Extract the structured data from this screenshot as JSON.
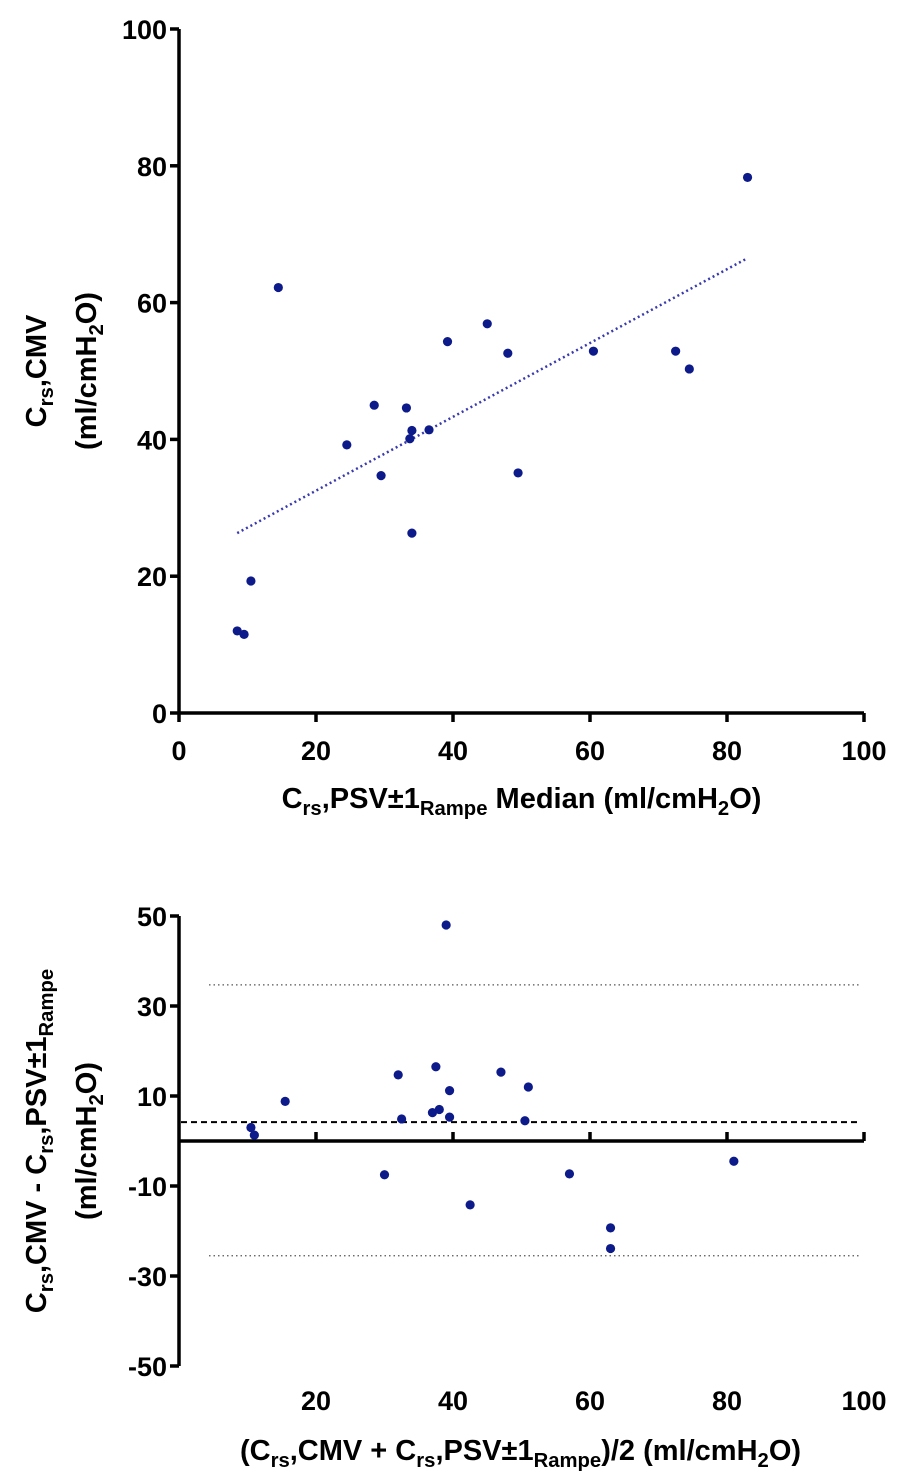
{
  "chart_data": [
    {
      "type": "scatter",
      "xlabel": "Crs,PSV±1Rampe Median (ml/cmH2O)",
      "xlabel_parts": [
        "C",
        "rs",
        ",PSV±1",
        "Rampe",
        " Median (ml/cmH",
        "2",
        "O)"
      ],
      "ylabel_line1_parts": [
        "C",
        "rs",
        ",CMV"
      ],
      "ylabel_line2_parts": [
        "(ml/cmH",
        "2",
        "O)"
      ],
      "xlim": [
        0,
        100
      ],
      "ylim": [
        0,
        100
      ],
      "xticks": [
        0,
        20,
        40,
        60,
        80,
        100
      ],
      "xtick_labels": [
        "0",
        "20",
        "40",
        "60",
        "80",
        "100"
      ],
      "yticks": [
        0,
        20,
        40,
        60,
        80,
        100
      ],
      "ytick_labels": [
        "0",
        "20",
        "40",
        "60",
        "80",
        "100"
      ],
      "points": [
        [
          8.5,
          12.0
        ],
        [
          9.5,
          11.5
        ],
        [
          10.5,
          19.3
        ],
        [
          14.5,
          62.2
        ],
        [
          24.5,
          39.2
        ],
        [
          28.5,
          45.0
        ],
        [
          29.5,
          34.7
        ],
        [
          33.2,
          44.6
        ],
        [
          33.7,
          40.1
        ],
        [
          34.0,
          41.3
        ],
        [
          34.0,
          26.3
        ],
        [
          36.5,
          41.4
        ],
        [
          39.2,
          54.3
        ],
        [
          45.0,
          56.9
        ],
        [
          48.0,
          52.6
        ],
        [
          49.5,
          35.1
        ],
        [
          60.5,
          52.9
        ],
        [
          72.5,
          52.9
        ],
        [
          74.5,
          50.3
        ],
        [
          83.0,
          78.3
        ]
      ],
      "trendline": {
        "x": [
          8.5,
          83.0
        ],
        "y": [
          26.3,
          66.5
        ],
        "style": "dotted",
        "color": "#3a3ab0"
      },
      "grid": false,
      "point_color": "#0d1a8a"
    },
    {
      "type": "scatter",
      "xlabel": "(Crs,CMV + Crs,PSV±1Rampe)/2  (ml/cmH2O)",
      "xlabel_parts": [
        "(C",
        "rs",
        ",CMV + C",
        "rs",
        ",PSV±1",
        "Rampe",
        ")/2  (ml/cmH",
        "2",
        "O)"
      ],
      "ylabel_line1_parts": [
        "C",
        "rs",
        ",CMV - C",
        "rs",
        ",PSV±1",
        "Rampe"
      ],
      "ylabel_line2_parts": [
        "(ml/cmH",
        "2",
        "O)"
      ],
      "xlim": [
        0,
        100
      ],
      "ylim": [
        -50,
        50
      ],
      "xticks": [
        20,
        40,
        60,
        80,
        100
      ],
      "xtick_labels": [
        "20",
        "40",
        "60",
        "80",
        "100"
      ],
      "yticks": [
        -50,
        -30,
        -10,
        10,
        30,
        50
      ],
      "ytick_labels": [
        "-50",
        "-30",
        "-10",
        "10",
        "30",
        "50"
      ],
      "points": [
        [
          10.5,
          3.0
        ],
        [
          11.0,
          1.3
        ],
        [
          15.5,
          8.8
        ],
        [
          30.0,
          -7.5
        ],
        [
          32.0,
          14.7
        ],
        [
          32.5,
          4.9
        ],
        [
          37.0,
          6.3
        ],
        [
          37.5,
          16.5
        ],
        [
          38.0,
          7.0
        ],
        [
          39.0,
          48.0
        ],
        [
          39.5,
          5.3
        ],
        [
          39.5,
          11.2
        ],
        [
          42.5,
          -14.2
        ],
        [
          47.0,
          15.3
        ],
        [
          50.5,
          4.5
        ],
        [
          51.0,
          12.0
        ],
        [
          57.0,
          -7.3
        ],
        [
          63.0,
          -19.3
        ],
        [
          63.0,
          -23.9
        ],
        [
          81.0,
          -4.5
        ]
      ],
      "zero_line": 0,
      "mean_line": {
        "y": 4.2,
        "style": "dashed"
      },
      "limit_lines": [
        {
          "y": 34.7,
          "style": "dotted"
        },
        {
          "y": -25.5,
          "style": "dotted"
        }
      ],
      "grid": false,
      "point_color": "#0d1a8a"
    }
  ]
}
